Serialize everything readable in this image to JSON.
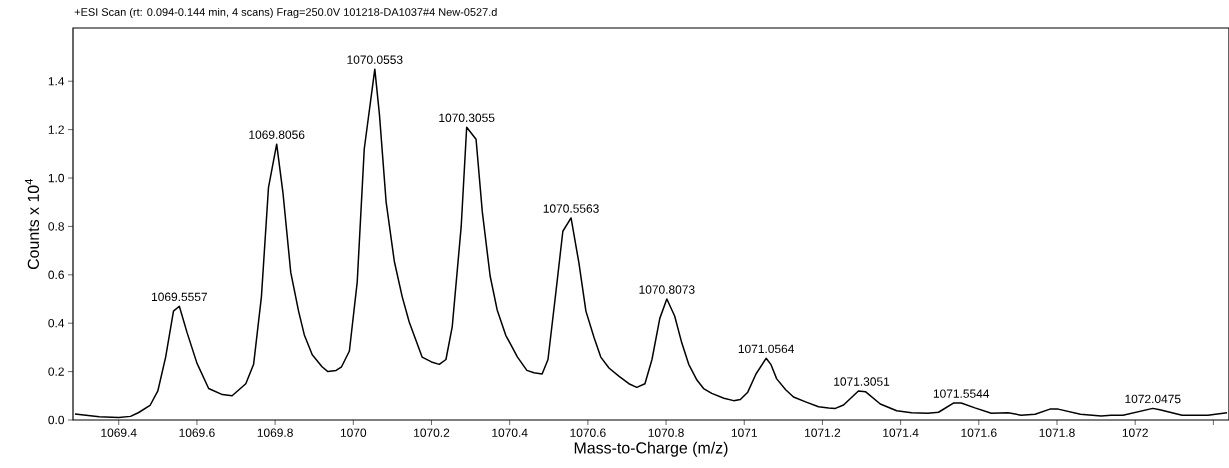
{
  "chart_data": {
    "type": "line",
    "title": "+ESI Scan (rt: 0.094-0.144 min, 4 scans) Frag=250.0V 101218-DA1037#4 New-0527.d",
    "xlabel": "Mass-to-Charge (m/z)",
    "ylabel": "Counts x 10$^{4}$",
    "xlim": [
      1069.283,
      1072.24
    ],
    "ylim": [
      0,
      1.62
    ],
    "xticks": [
      1069.4,
      1069.6,
      1069.8,
      1070,
      1070.2,
      1070.4,
      1070.6,
      1070.8,
      1071,
      1071.2,
      1071.4,
      1071.6,
      1071.8,
      1072,
      {
        "value": 1072.2,
        "label": null
      }
    ],
    "yticks": [
      {
        "value": 0,
        "label": "0.0"
      },
      0.2,
      0.4,
      0.6,
      0.8,
      {
        "value": 1,
        "label": "1.0"
      },
      1.2,
      1.4
    ],
    "grid": false,
    "marker": "none",
    "line_style": "solid",
    "series": [
      {
        "color": "#000000",
        "x": [
          1069.288,
          1069.35,
          1069.4,
          1069.43,
          1069.45,
          1069.48,
          1069.5,
          1069.52,
          1069.54,
          1069.555,
          1069.575,
          1069.6,
          1069.63,
          1069.665,
          1069.69,
          1069.725,
          1069.745,
          1069.765,
          1069.783,
          1069.804,
          1069.82,
          1069.84,
          1069.86,
          1069.875,
          1069.895,
          1069.92,
          1069.935,
          1069.956,
          1069.97,
          1069.99,
          1070.01,
          1070.028,
          1070.055,
          1070.067,
          1070.084,
          1070.105,
          1070.125,
          1070.143,
          1070.176,
          1070.2,
          1070.22,
          1070.237,
          1070.253,
          1070.276,
          1070.29,
          1070.314,
          1070.33,
          1070.35,
          1070.368,
          1070.39,
          1070.42,
          1070.444,
          1070.462,
          1070.483,
          1070.498,
          1070.518,
          1070.536,
          1070.557,
          1070.577,
          1070.595,
          1070.616,
          1070.633,
          1070.654,
          1070.68,
          1070.705,
          1070.725,
          1070.746,
          1070.764,
          1070.784,
          1070.802,
          1070.822,
          1070.84,
          1070.858,
          1070.879,
          1070.896,
          1070.917,
          1070.948,
          1070.973,
          1070.99,
          1071.009,
          1071.03,
          1071.056,
          1071.068,
          1071.083,
          1071.106,
          1071.126,
          1071.157,
          1071.19,
          1071.216,
          1071.233,
          1071.254,
          1071.292,
          1071.31,
          1071.348,
          1071.39,
          1071.428,
          1071.47,
          1071.497,
          1071.535,
          1071.555,
          1071.59,
          1071.632,
          1071.675,
          1071.708,
          1071.744,
          1071.782,
          1071.803,
          1071.86,
          1071.913,
          1071.938,
          1071.969,
          1072.007,
          1072.045,
          1072.063,
          1072.12,
          1072.186,
          1072.235
        ],
        "values": [
          0.025,
          0.013,
          0.01,
          0.015,
          0.03,
          0.06,
          0.12,
          0.26,
          0.45,
          0.47,
          0.36,
          0.235,
          0.13,
          0.105,
          0.1,
          0.15,
          0.23,
          0.51,
          0.96,
          1.14,
          0.94,
          0.61,
          0.45,
          0.35,
          0.27,
          0.22,
          0.2,
          0.205,
          0.22,
          0.285,
          0.57,
          1.12,
          1.45,
          1.26,
          0.9,
          0.655,
          0.51,
          0.405,
          0.26,
          0.24,
          0.23,
          0.25,
          0.385,
          0.8,
          1.21,
          1.16,
          0.86,
          0.595,
          0.455,
          0.35,
          0.26,
          0.205,
          0.195,
          0.19,
          0.25,
          0.525,
          0.78,
          0.835,
          0.65,
          0.45,
          0.34,
          0.26,
          0.215,
          0.18,
          0.15,
          0.135,
          0.15,
          0.25,
          0.42,
          0.5,
          0.43,
          0.32,
          0.23,
          0.165,
          0.13,
          0.11,
          0.09,
          0.08,
          0.085,
          0.115,
          0.19,
          0.255,
          0.23,
          0.17,
          0.125,
          0.095,
          0.075,
          0.055,
          0.05,
          0.048,
          0.062,
          0.12,
          0.117,
          0.066,
          0.038,
          0.03,
          0.028,
          0.032,
          0.07,
          0.07,
          0.05,
          0.028,
          0.03,
          0.02,
          0.024,
          0.045,
          0.045,
          0.024,
          0.017,
          0.02,
          0.02,
          0.034,
          0.048,
          0.042,
          0.02,
          0.02,
          0.03
        ]
      }
    ],
    "annotations": [
      {
        "text": "1069.5557",
        "x": 1069.555,
        "y": 0.47
      },
      {
        "text": "1069.8056",
        "x": 1069.804,
        "y": 1.14
      },
      {
        "text": "1070.0553",
        "x": 1070.055,
        "y": 1.45
      },
      {
        "text": "1070.3055",
        "x": 1070.29,
        "y": 1.21
      },
      {
        "text": "1070.5563",
        "x": 1070.557,
        "y": 0.835
      },
      {
        "text": "1070.8073",
        "x": 1070.802,
        "y": 0.5
      },
      {
        "text": "1071.0564",
        "x": 1071.056,
        "y": 0.255
      },
      {
        "text": "1071.3051",
        "x": 1071.3,
        "y": 0.12
      },
      {
        "text": "1071.5544",
        "x": 1071.555,
        "y": 0.07
      },
      {
        "text": "1072.0475",
        "x": 1072.045,
        "y": 0.048
      }
    ]
  }
}
